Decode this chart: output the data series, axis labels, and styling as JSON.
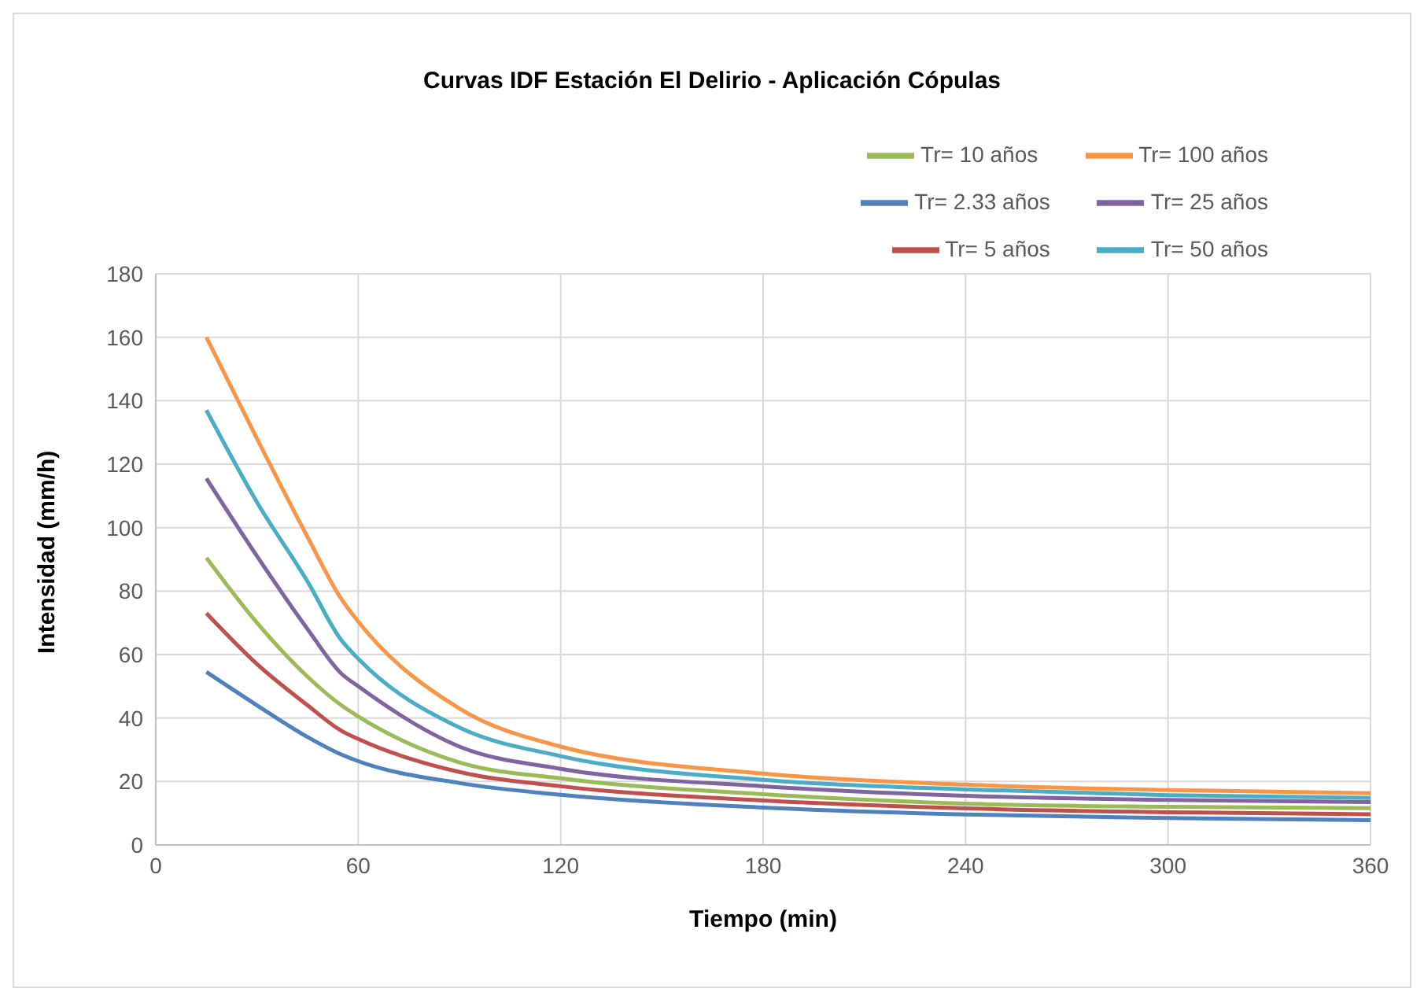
{
  "chart_data": {
    "type": "line",
    "title": "Curvas IDF Estación El Delirio - Aplicación Cópulas",
    "xlabel": "Tiempo (min)",
    "ylabel": "Intensidad (mm/h)",
    "x": [
      15,
      30,
      45,
      55,
      60,
      90,
      120,
      180,
      240,
      300,
      360
    ],
    "series": [
      {
        "name": "Tr= 2.33 años",
        "color": "#4f81bd",
        "values": [
          54.5,
          44,
          34,
          28.5,
          26.4,
          19.5,
          15.8,
          11.8,
          9.6,
          8.5,
          7.8
        ]
      },
      {
        "name": "Tr= 5 años",
        "color": "#c0504d",
        "values": [
          73,
          57,
          44,
          36,
          33.4,
          23,
          18.5,
          14,
          11.5,
          10.3,
          9.7
        ]
      },
      {
        "name": "Tr= 10 años",
        "color": "#9bbb59",
        "values": [
          90.5,
          70,
          53,
          44,
          40.5,
          26,
          21,
          16,
          13,
          12,
          11.6
        ]
      },
      {
        "name": "Tr= 25 años",
        "color": "#8064a2",
        "values": [
          115.5,
          91,
          68,
          54,
          50,
          31,
          24,
          18.5,
          15.5,
          14.2,
          13.5
        ]
      },
      {
        "name": "Tr= 50 años",
        "color": "#4bacc6",
        "values": [
          137,
          108,
          83,
          64.5,
          58.7,
          37,
          28,
          20.5,
          17.5,
          15.7,
          14.8
        ]
      },
      {
        "name": "Tr= 100 años",
        "color": "#f79646",
        "values": [
          160,
          128,
          97,
          77.5,
          70.4,
          43,
          31,
          22.5,
          19,
          17.3,
          16.3
        ]
      }
    ],
    "xlim": [
      0,
      360
    ],
    "xticks": [
      0,
      60,
      120,
      180,
      240,
      300,
      360
    ],
    "ylim": [
      0,
      180
    ],
    "yticks": [
      0,
      20,
      40,
      60,
      80,
      100,
      120,
      140,
      160,
      180
    ],
    "grid": true,
    "legend": "top right",
    "marker": "none",
    "line_style": "solid"
  }
}
